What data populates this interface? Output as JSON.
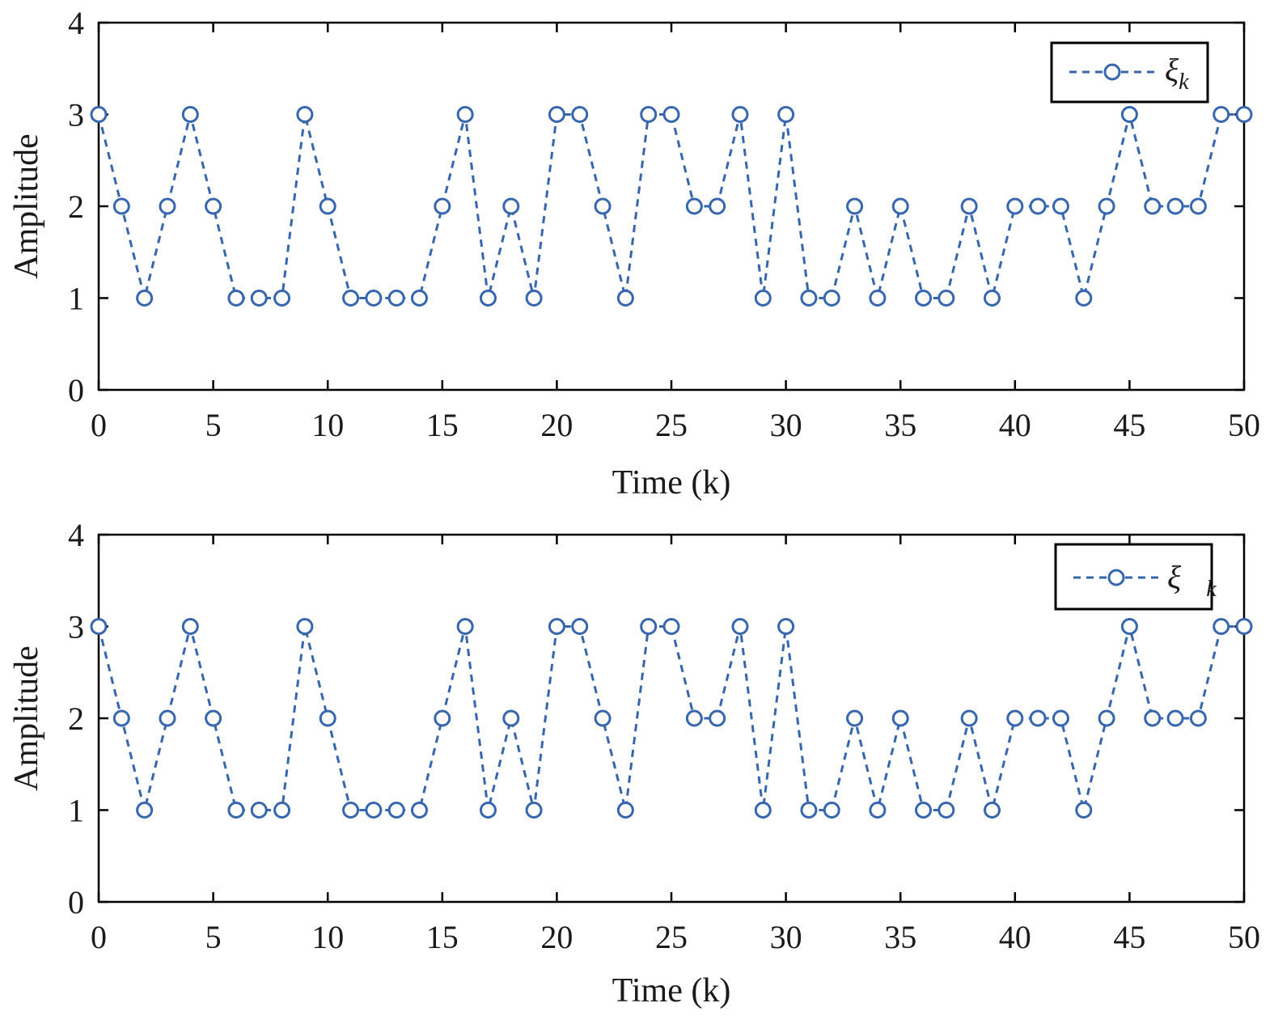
{
  "chart_data": [
    {
      "type": "line",
      "xlabel": "Time (k)",
      "ylabel": "Amplitude",
      "xlim": [
        0,
        50
      ],
      "ylim": [
        0,
        4
      ],
      "xticks": [
        0,
        5,
        10,
        15,
        20,
        25,
        30,
        35,
        40,
        45,
        50
      ],
      "yticks": [
        0,
        1,
        2,
        3,
        4
      ],
      "grid": false,
      "legend_position": "top-right",
      "series": [
        {
          "name": "ξ_k",
          "line_style": "dashed",
          "marker": "circle",
          "color": "#3566ae",
          "x": [
            0,
            1,
            2,
            3,
            4,
            5,
            6,
            7,
            8,
            9,
            10,
            11,
            12,
            13,
            14,
            15,
            16,
            17,
            18,
            19,
            20,
            21,
            22,
            23,
            24,
            25,
            26,
            27,
            28,
            29,
            30,
            31,
            32,
            33,
            34,
            35,
            36,
            37,
            38,
            39,
            40,
            41,
            42,
            43,
            44,
            45,
            46,
            47,
            48,
            49,
            50
          ],
          "values": [
            3,
            2,
            1,
            2,
            3,
            2,
            1,
            1,
            1,
            3,
            2,
            1,
            1,
            1,
            1,
            2,
            3,
            1,
            2,
            1,
            3,
            3,
            2,
            1,
            3,
            3,
            2,
            2,
            3,
            1,
            3,
            1,
            1,
            2,
            1,
            2,
            1,
            1,
            2,
            1,
            2,
            2,
            2,
            1,
            2,
            3,
            2,
            2,
            2,
            3,
            3
          ]
        }
      ]
    },
    {
      "type": "line",
      "xlabel": "Time (k)",
      "ylabel": "Amplitude",
      "xlim": [
        0,
        50
      ],
      "ylim": [
        0,
        4
      ],
      "xticks": [
        0,
        5,
        10,
        15,
        20,
        25,
        30,
        35,
        40,
        45,
        50
      ],
      "yticks": [
        0,
        1,
        2,
        3,
        4
      ],
      "grid": false,
      "legend_position": "top-right",
      "series": [
        {
          "name": "ξ⃗_k",
          "line_style": "dashed",
          "marker": "circle",
          "color": "#3566ae",
          "x": [
            0,
            1,
            2,
            3,
            4,
            5,
            6,
            7,
            8,
            9,
            10,
            11,
            12,
            13,
            14,
            15,
            16,
            17,
            18,
            19,
            20,
            21,
            22,
            23,
            24,
            25,
            26,
            27,
            28,
            29,
            30,
            31,
            32,
            33,
            34,
            35,
            36,
            37,
            38,
            39,
            40,
            41,
            42,
            43,
            44,
            45,
            46,
            47,
            48,
            49,
            50
          ],
          "values": [
            3,
            2,
            1,
            2,
            3,
            2,
            1,
            1,
            1,
            3,
            2,
            1,
            1,
            1,
            1,
            2,
            3,
            1,
            2,
            1,
            3,
            3,
            2,
            1,
            3,
            3,
            2,
            2,
            3,
            1,
            3,
            1,
            1,
            2,
            1,
            2,
            1,
            1,
            2,
            1,
            2,
            2,
            2,
            1,
            2,
            3,
            2,
            2,
            2,
            3,
            3
          ]
        }
      ]
    }
  ]
}
